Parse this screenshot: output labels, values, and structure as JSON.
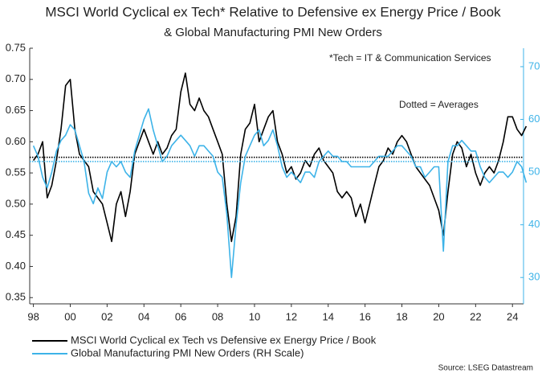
{
  "chart_data": {
    "type": "line",
    "title": "MSCI World Cyclical ex Tech* Relative to Defensive ex Energy Price / Book",
    "subtitle": "& Global Manufacturing PMI New Orders",
    "annotations": [
      "*Tech = IT & Communication Services",
      "Dotted = Averages"
    ],
    "source": "Source: LSEG Datastream",
    "x": [
      1998,
      1998.25,
      1998.5,
      1998.75,
      1999,
      1999.25,
      1999.5,
      1999.75,
      2000,
      2000.25,
      2000.5,
      2000.75,
      2001,
      2001.25,
      2001.5,
      2001.75,
      2002,
      2002.25,
      2002.5,
      2002.75,
      2003,
      2003.25,
      2003.5,
      2003.75,
      2004,
      2004.25,
      2004.5,
      2004.75,
      2005,
      2005.25,
      2005.5,
      2005.75,
      2006,
      2006.25,
      2006.5,
      2006.75,
      2007,
      2007.25,
      2007.5,
      2007.75,
      2008,
      2008.25,
      2008.5,
      2008.75,
      2009,
      2009.25,
      2009.5,
      2009.75,
      2010,
      2010.25,
      2010.5,
      2010.75,
      2011,
      2011.25,
      2011.5,
      2011.75,
      2012,
      2012.25,
      2012.5,
      2012.75,
      2013,
      2013.25,
      2013.5,
      2013.75,
      2014,
      2014.25,
      2014.5,
      2014.75,
      2015,
      2015.25,
      2015.5,
      2015.75,
      2016,
      2016.25,
      2016.5,
      2016.75,
      2017,
      2017.25,
      2017.5,
      2017.75,
      2018,
      2018.25,
      2018.5,
      2018.75,
      2019,
      2019.25,
      2019.5,
      2019.75,
      2020,
      2020.25,
      2020.5,
      2020.75,
      2021,
      2021.25,
      2021.5,
      2021.75,
      2022,
      2022.25,
      2022.5,
      2022.75,
      2023,
      2023.25,
      2023.5,
      2023.75,
      2024,
      2024.25,
      2024.5,
      2024.75
    ],
    "series": [
      {
        "name": "MSCI World Cyclical ex Tech vs Defensive ex Energy Price / Book",
        "color": "#000000",
        "average": 0.575,
        "values": [
          0.57,
          0.58,
          0.6,
          0.51,
          0.53,
          0.57,
          0.62,
          0.69,
          0.7,
          0.62,
          0.58,
          0.57,
          0.56,
          0.52,
          0.51,
          0.5,
          0.47,
          0.44,
          0.5,
          0.52,
          0.48,
          0.52,
          0.58,
          0.6,
          0.62,
          0.6,
          0.58,
          0.6,
          0.58,
          0.59,
          0.61,
          0.62,
          0.68,
          0.71,
          0.66,
          0.65,
          0.67,
          0.65,
          0.64,
          0.62,
          0.6,
          0.58,
          0.5,
          0.44,
          0.48,
          0.58,
          0.62,
          0.63,
          0.66,
          0.6,
          0.62,
          0.64,
          0.65,
          0.6,
          0.58,
          0.55,
          0.56,
          0.54,
          0.55,
          0.57,
          0.56,
          0.58,
          0.59,
          0.57,
          0.56,
          0.55,
          0.52,
          0.51,
          0.52,
          0.51,
          0.48,
          0.5,
          0.47,
          0.5,
          0.53,
          0.56,
          0.57,
          0.59,
          0.58,
          0.6,
          0.61,
          0.6,
          0.58,
          0.56,
          0.55,
          0.54,
          0.53,
          0.51,
          0.49,
          0.45,
          0.52,
          0.58,
          0.6,
          0.59,
          0.56,
          0.58,
          0.55,
          0.53,
          0.55,
          0.56,
          0.55,
          0.57,
          0.6,
          0.64,
          0.64,
          0.62,
          0.61,
          0.625
        ]
      },
      {
        "name": "Global Manufacturing PMI New Orders (RH Scale)",
        "color": "#3db3e8",
        "axis": "y2",
        "average": 52,
        "values": [
          55,
          53,
          49,
          47,
          50,
          54,
          56,
          57,
          59,
          58,
          55,
          52,
          46,
          44,
          47,
          45,
          50,
          52,
          51,
          52,
          50,
          49,
          54,
          57,
          60,
          62,
          58,
          55,
          52,
          53,
          55,
          56,
          57,
          56,
          55,
          53,
          55,
          55,
          54,
          53,
          50,
          49,
          42,
          30,
          40,
          48,
          53,
          55,
          57,
          58,
          55,
          56,
          58,
          55,
          51,
          49,
          50,
          49,
          48,
          50,
          50,
          49,
          52,
          53,
          54,
          53,
          53,
          52,
          52,
          51,
          51,
          51,
          51,
          51,
          52,
          53,
          53,
          53,
          54,
          55,
          55,
          54,
          53,
          51,
          51,
          49,
          50,
          51,
          51,
          35,
          52,
          55,
          55,
          56,
          55,
          54,
          54,
          51,
          49,
          48,
          49,
          50,
          50,
          49,
          50,
          52,
          51,
          48
        ]
      }
    ],
    "xlim": [
      1997.8,
      2024.6
    ],
    "xticks": [
      {
        "value": 1998,
        "label": "98"
      },
      {
        "value": 2000,
        "label": "00"
      },
      {
        "value": 2002,
        "label": "02"
      },
      {
        "value": 2004,
        "label": "04"
      },
      {
        "value": 2006,
        "label": "06"
      },
      {
        "value": 2008,
        "label": "08"
      },
      {
        "value": 2010,
        "label": "10"
      },
      {
        "value": 2012,
        "label": "12"
      },
      {
        "value": 2014,
        "label": "14"
      },
      {
        "value": 2016,
        "label": "16"
      },
      {
        "value": 2018,
        "label": "18"
      },
      {
        "value": 2020,
        "label": "20"
      },
      {
        "value": 2022,
        "label": "22"
      },
      {
        "value": 2024,
        "label": "24"
      }
    ],
    "ylim": [
      0.34,
      0.75
    ],
    "yticks": [
      0.35,
      {
        "value": 0.4,
        "label": "0.40"
      },
      0.45,
      {
        "value": 0.5,
        "label": "0.50"
      },
      0.55,
      {
        "value": 0.6,
        "label": "0.60"
      },
      0.65,
      {
        "value": 0.7,
        "label": "0.70"
      },
      0.75
    ],
    "y2lim": [
      25,
      73.5
    ],
    "y2ticks": [
      30,
      40,
      50,
      60,
      70
    ]
  }
}
